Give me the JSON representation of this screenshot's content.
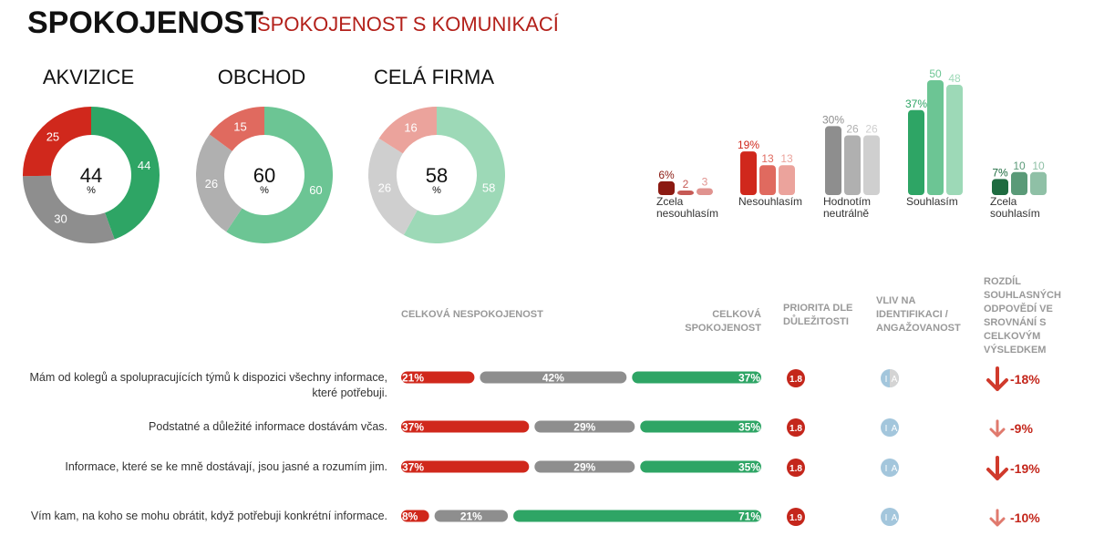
{
  "header": {
    "title": "SPOKOJENOST",
    "subtitle": "SPOKOJENOST S KOMUNIKACÍ"
  },
  "chart_data": [
    {
      "type": "pie",
      "title": "AKVIZICE",
      "values": [
        44,
        30,
        25
      ],
      "colors": [
        "#2ea565",
        "#8e8e8e",
        "#d0281c"
      ],
      "center_value": 44,
      "center_unit": "%"
    },
    {
      "type": "pie",
      "title": "OBCHOD",
      "values": [
        60,
        26,
        15
      ],
      "colors": [
        "#6cc594",
        "#b0b0b0",
        "#e06a5f"
      ],
      "center_value": 60,
      "center_unit": "%"
    },
    {
      "type": "pie",
      "title": "CELÁ FIRMA",
      "values": [
        58,
        26,
        16
      ],
      "colors": [
        "#9dd9b7",
        "#cfcfcf",
        "#eba39c"
      ],
      "center_value": 58,
      "center_unit": "%"
    },
    {
      "type": "bar",
      "categories": [
        "Zcela nesouhlasím",
        "Nesouhlasím",
        "Hodnotím neutrálně",
        "Souhlasím",
        "Zcela souhlasím"
      ],
      "series": [
        {
          "values": [
            6,
            19,
            30,
            37,
            7
          ],
          "value_labels": [
            "6%",
            "19%",
            "30%",
            "37%",
            "7%"
          ],
          "colors": [
            "#8b1a12",
            "#d0281c",
            "#8e8e8e",
            "#2ea565",
            "#1e6b40"
          ]
        },
        {
          "values": [
            2,
            13,
            26,
            50,
            10
          ],
          "colors": [
            "#c65a55",
            "#e06a5f",
            "#b0b0b0",
            "#6cc594",
            "#5a9a78"
          ]
        },
        {
          "values": [
            3,
            13,
            26,
            48,
            10
          ],
          "colors": [
            "#e0938f",
            "#eba39c",
            "#cfcfcf",
            "#9dd9b7",
            "#8fc0a6"
          ]
        }
      ]
    }
  ],
  "table": {
    "columns": [
      "CELKOVÁ NESPOKOJENOST",
      "CELKOVÁ SPOKOJENOST",
      "PRIORITA DLE DŮLEŽITOSTI",
      "VLIV NA IDENTIFIKACI / ANGAŽOVANOST",
      "ROZDÍL SOUHLASNÝCH ODPOVĚDÍ VE SROVNÁNÍ S CELKOVÝM VÝSLEDKEM"
    ],
    "segment_colors": [
      "#d0281c",
      "#8e8e8e",
      "#2ea565"
    ],
    "rows": [
      {
        "label": "Mám od kolegů a spolupracujících týmů k dispozici všechny informace, které potřebuji.",
        "values": [
          21,
          42,
          37
        ],
        "value_labels": [
          "21%",
          "42%",
          "37%"
        ],
        "priority": 1.8,
        "influence": [
          "I",
          "A"
        ],
        "diff": "-18%"
      },
      {
        "label": "Podstatné a důležité informace dostávám včas.",
        "values": [
          37,
          29,
          35
        ],
        "value_labels": [
          "37%",
          "29%",
          "35%"
        ],
        "priority": 1.8,
        "influence": [
          "I",
          "A"
        ],
        "diff": "-9%"
      },
      {
        "label": "Informace, které se ke mně dostávají, jsou jasné a rozumím jim.",
        "values": [
          37,
          29,
          35
        ],
        "value_labels": [
          "37%",
          "29%",
          "35%"
        ],
        "priority": 1.8,
        "influence": [
          "I",
          "A"
        ],
        "diff": "-19%"
      },
      {
        "label": "Vím kam, na koho se mohu obrátit, když potřebuji konkrétní informace.",
        "values": [
          8,
          21,
          71
        ],
        "value_labels": [
          "8%",
          "21%",
          "71%"
        ],
        "priority": 1.9,
        "influence": [
          "I",
          "A"
        ],
        "diff": "-10%"
      }
    ]
  }
}
